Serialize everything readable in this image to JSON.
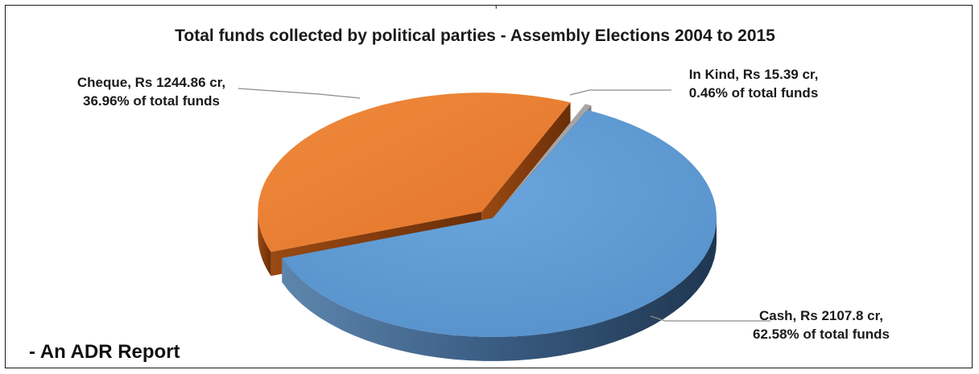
{
  "chart_data": {
    "type": "pie",
    "title": "Total funds collected by political parties - Assembly Elections 2004 to 2015",
    "series": [
      {
        "values": [
          2107.8,
          1244.86,
          15.39
        ],
        "categories": [
          "Cash",
          "Cheque",
          "In Kind"
        ],
        "percentages": [
          62.58,
          36.96,
          0.46
        ]
      }
    ],
    "labels": [
      [
        "Cash, Rs 2107.8 cr,",
        "62.58% of total funds"
      ],
      [
        "Cheque, Rs 1244.86 cr,",
        "36.96% of total funds"
      ],
      [
        "In Kind, Rs 15.39 cr,",
        "0.46% of total funds"
      ]
    ],
    "colors": [
      "#5b9bd5",
      "#ed7d31",
      "#a5a5a5"
    ],
    "style": "3d-exploded-pie"
  },
  "footer": "- An ADR Report",
  "top_mark": ","
}
